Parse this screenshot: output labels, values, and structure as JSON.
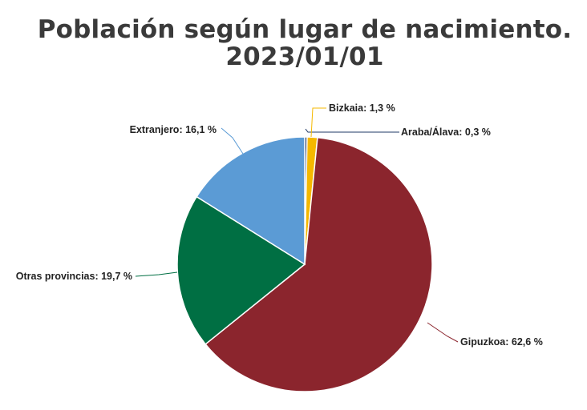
{
  "chart_data": {
    "type": "pie",
    "title": "Población según lugar de nacimiento.",
    "subtitle": "2023/01/01",
    "legend": "none",
    "slices": [
      {
        "name": "Araba/Álava",
        "value": 0.3,
        "label": "Araba/Álava: 0,3 %",
        "color": "#1f3864"
      },
      {
        "name": "Bizkaia",
        "value": 1.3,
        "label": "Bizkaia: 1,3 %",
        "color": "#f5b800"
      },
      {
        "name": "Gipuzkoa",
        "value": 62.6,
        "label": "Gipuzkoa: 62,6 %",
        "color": "#8b252d"
      },
      {
        "name": "Otras provincias",
        "value": 19.7,
        "label": "Otras provincias: 19,7 %",
        "color": "#006f43"
      },
      {
        "name": "Extranjero",
        "value": 16.1,
        "label": "Extranjero: 16,1 %",
        "color": "#5b9bd5"
      }
    ]
  }
}
